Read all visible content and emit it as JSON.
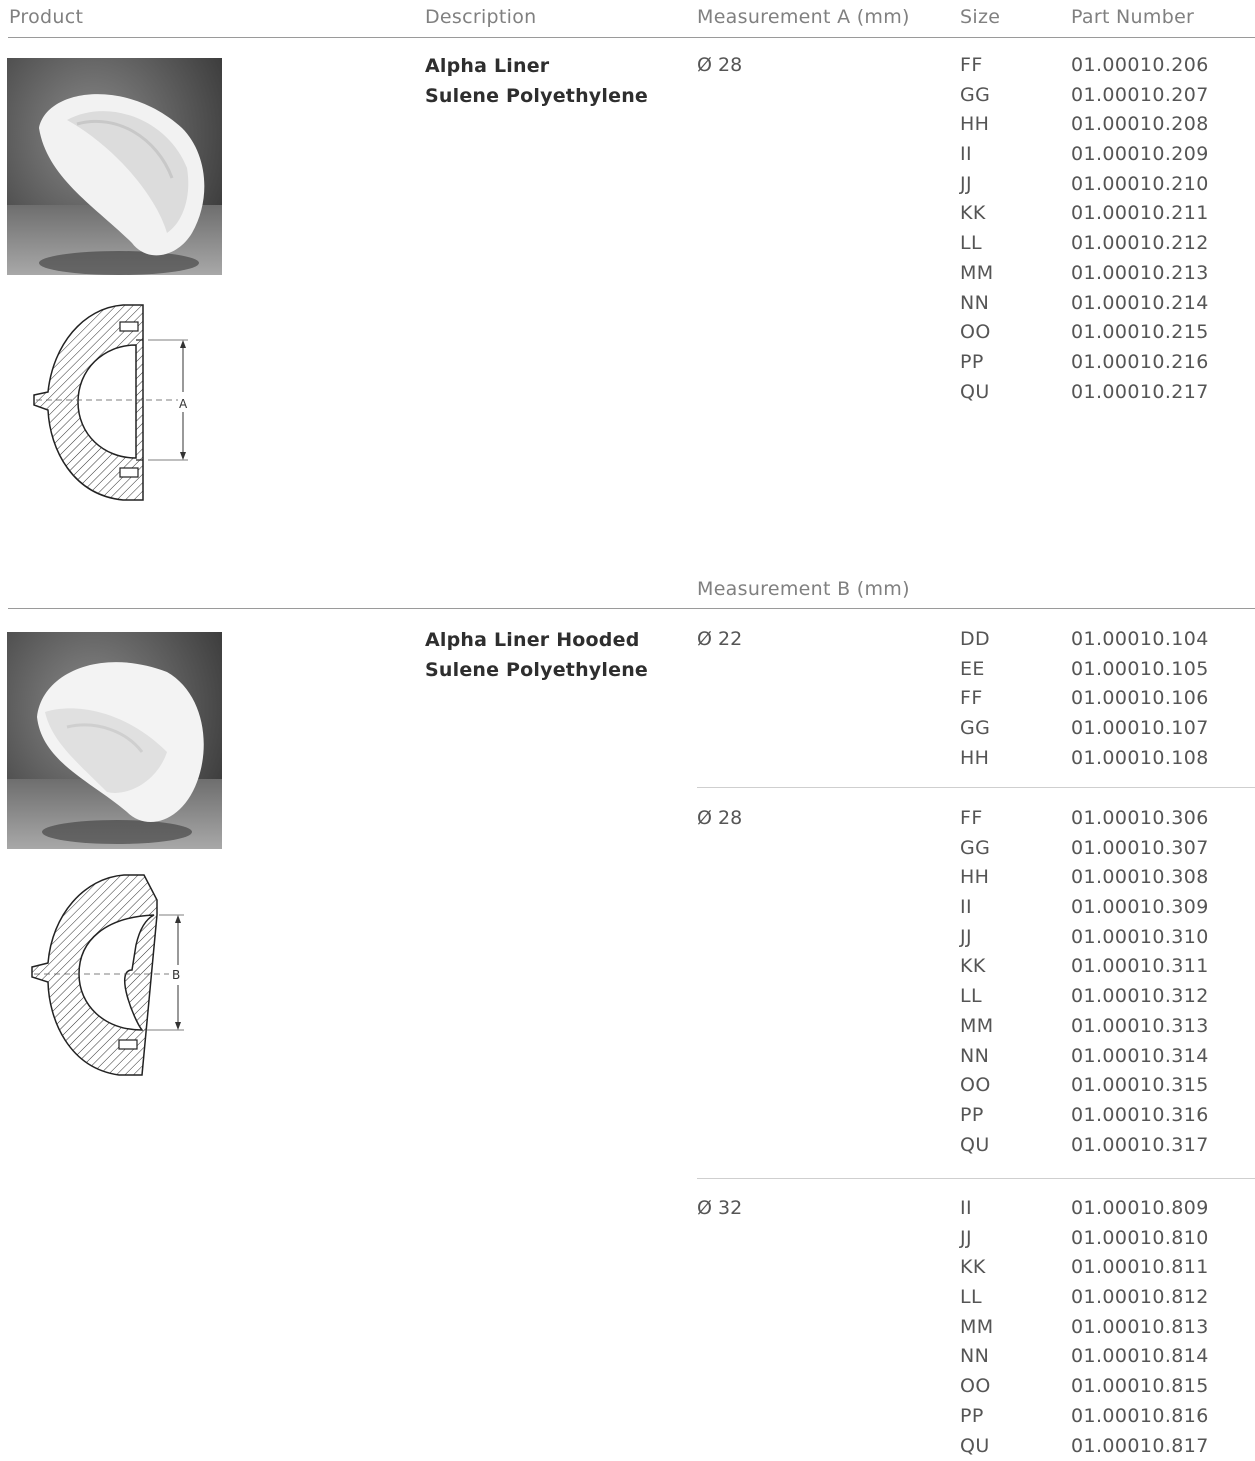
{
  "header": {
    "product": "Product",
    "description": "Description",
    "measurement_a": "Measurement A (mm)",
    "size": "Size",
    "part_number": "Part Number"
  },
  "measurement_b_header": "Measurement B (mm)",
  "diagram_labels": {
    "a": "A",
    "b": "B"
  },
  "products": [
    {
      "name": "Alpha Liner",
      "material": "Sulene Polyethylene",
      "groups": [
        {
          "measurement": "Ø 28",
          "sizes": [
            "FF",
            "GG",
            "HH",
            "II",
            "JJ",
            "KK",
            "LL",
            "MM",
            "NN",
            "OO",
            "PP",
            "QU"
          ],
          "parts": [
            "01.00010.206",
            "01.00010.207",
            "01.00010.208",
            "01.00010.209",
            "01.00010.210",
            "01.00010.211",
            "01.00010.212",
            "01.00010.213",
            "01.00010.214",
            "01.00010.215",
            "01.00010.216",
            "01.00010.217"
          ]
        }
      ]
    },
    {
      "name": "Alpha Liner Hooded",
      "material": "Sulene Polyethylene",
      "groups": [
        {
          "measurement": "Ø 22",
          "sizes": [
            "DD",
            "EE",
            "FF",
            "GG",
            "HH"
          ],
          "parts": [
            "01.00010.104",
            "01.00010.105",
            "01.00010.106",
            "01.00010.107",
            "01.00010.108"
          ]
        },
        {
          "measurement": "Ø 28",
          "sizes": [
            "FF",
            "GG",
            "HH",
            "II",
            "JJ",
            "KK",
            "LL",
            "MM",
            "NN",
            "OO",
            "PP",
            "QU"
          ],
          "parts": [
            "01.00010.306",
            "01.00010.307",
            "01.00010.308",
            "01.00010.309",
            "01.00010.310",
            "01.00010.311",
            "01.00010.312",
            "01.00010.313",
            "01.00010.314",
            "01.00010.315",
            "01.00010.316",
            "01.00010.317"
          ]
        },
        {
          "measurement": "Ø 32",
          "sizes": [
            "II",
            "JJ",
            "KK",
            "LL",
            "MM",
            "NN",
            "OO",
            "PP",
            "QU"
          ],
          "parts": [
            "01.00010.809",
            "01.00010.810",
            "01.00010.811",
            "01.00010.812",
            "01.00010.813",
            "01.00010.814",
            "01.00010.815",
            "01.00010.816",
            "01.00010.817"
          ]
        }
      ]
    }
  ]
}
